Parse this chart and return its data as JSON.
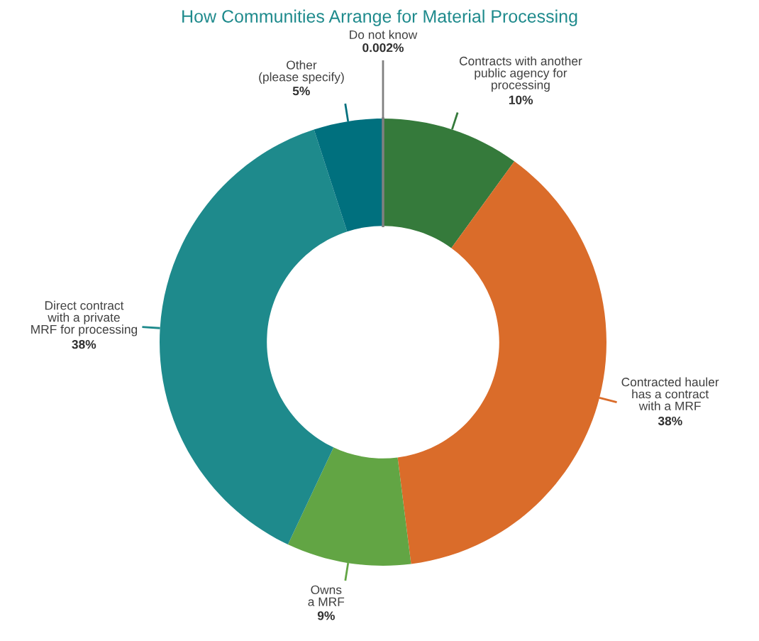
{
  "chart_data": {
    "type": "donut",
    "title": "How Communities Arrange for Material Processing",
    "categories": [
      "Contracts with another\npublic agency for\nprocessing",
      "Contracted hauler\nhas a contract\nwith a MRF",
      "Owns\na MRF",
      "Direct contract\nwith a private\nMRF for processing",
      "Other\n(please specify)",
      "Do not know"
    ],
    "values": [
      10,
      38,
      9,
      38,
      5,
      0.002
    ],
    "value_labels": [
      "10%",
      "38%",
      "9%",
      "38%",
      "5%",
      "0.002%"
    ],
    "colors": [
      "#357a3b",
      "#da6c2a",
      "#62a544",
      "#1e8a8c",
      "#00707e",
      "#808080"
    ],
    "legend": false
  }
}
